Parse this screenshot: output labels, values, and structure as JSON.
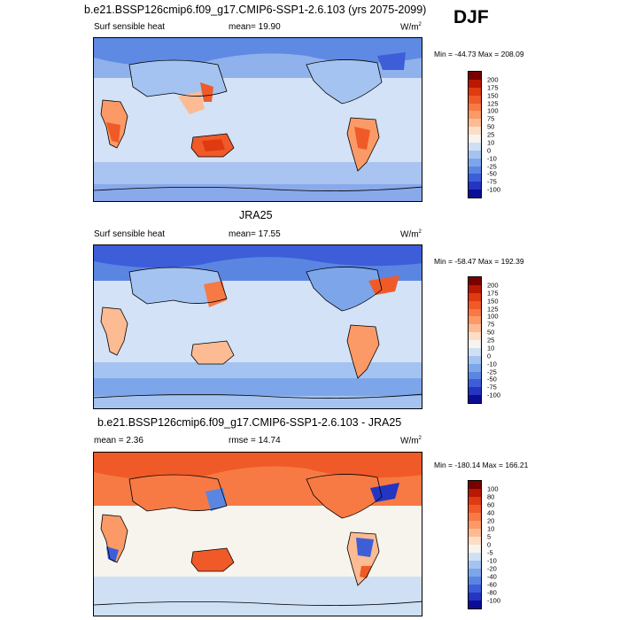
{
  "season": "DJF",
  "panels": [
    {
      "title": "b.e21.BSSP126cmip6.f09_g17.CMIP6-SSP1-2.6.103 (yrs 2075-2099)",
      "left_label": "Surf sensible heat",
      "center_label": "mean=  19.90",
      "units": "W/m",
      "units_exp": "2",
      "minmax": "Min = -44.73 Max = 208.09",
      "levels": [
        "200",
        "175",
        "150",
        "125",
        "100",
        "75",
        "50",
        "25",
        "10",
        "0",
        "-10",
        "-25",
        "-50",
        "-75",
        "-100"
      ],
      "colors": [
        "#7a0000",
        "#b81900",
        "#e03a10",
        "#f05a28",
        "#f77a44",
        "#fb9a66",
        "#fcbb93",
        "#fdddc6",
        "#f7f4ee",
        "#cfe0f5",
        "#a4c3f0",
        "#7da6ea",
        "#5a86e2",
        "#3d5ed8",
        "#2435c2",
        "#0b0d94"
      ]
    },
    {
      "title": "JRA25",
      "left_label": "Surf sensible heat",
      "center_label": "mean=  17.55",
      "units": "W/m",
      "units_exp": "2",
      "minmax": "Min = -58.47 Max = 192.39",
      "levels": [
        "200",
        "175",
        "150",
        "125",
        "100",
        "75",
        "50",
        "25",
        "10",
        "0",
        "-10",
        "-25",
        "-50",
        "-75",
        "-100"
      ],
      "colors": [
        "#7a0000",
        "#b81900",
        "#e03a10",
        "#f05a28",
        "#f77a44",
        "#fb9a66",
        "#fcbb93",
        "#fdddc6",
        "#f7f4ee",
        "#cfe0f5",
        "#a4c3f0",
        "#7da6ea",
        "#5a86e2",
        "#3d5ed8",
        "#2435c2",
        "#0b0d94"
      ]
    },
    {
      "title": "b.e21.BSSP126cmip6.f09_g17.CMIP6-SSP1-2.6.103 - JRA25",
      "left_label": "mean =   2.36",
      "center_label": "rmse =  14.74",
      "units": "W/m",
      "units_exp": "2",
      "minmax": "Min = -180.14 Max = 166.21",
      "levels": [
        "100",
        "80",
        "60",
        "40",
        "20",
        "10",
        "5",
        "0",
        "-5",
        "-10",
        "-20",
        "-40",
        "-60",
        "-80",
        "-100"
      ],
      "colors": [
        "#7a0000",
        "#b81900",
        "#e03a10",
        "#f05a28",
        "#f77a44",
        "#fb9a66",
        "#fcbb93",
        "#fdddc6",
        "#f7f4ee",
        "#cfe0f5",
        "#a4c3f0",
        "#7da6ea",
        "#5a86e2",
        "#3d5ed8",
        "#2435c2",
        "#0b0d94"
      ]
    }
  ]
}
